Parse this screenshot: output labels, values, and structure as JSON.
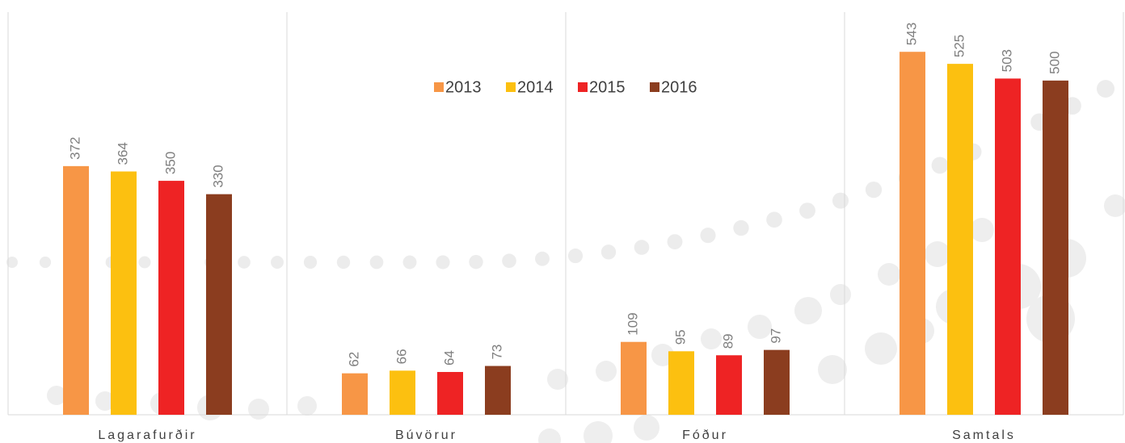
{
  "chart_data": {
    "type": "bar",
    "categories": [
      "Lagarafurðir",
      "Búvörur",
      "Fóður",
      "Samtals"
    ],
    "series": [
      {
        "name": "2013",
        "color": "#f79646",
        "values": [
          372,
          62,
          109,
          543
        ]
      },
      {
        "name": "2014",
        "color": "#fcc010",
        "values": [
          364,
          66,
          95,
          525
        ]
      },
      {
        "name": "2015",
        "color": "#ee2324",
        "values": [
          350,
          64,
          89,
          503
        ]
      },
      {
        "name": "2016",
        "color": "#8b3d1f",
        "values": [
          330,
          73,
          97,
          500
        ]
      }
    ],
    "ylim": [
      0,
      600
    ],
    "legend": "top"
  }
}
